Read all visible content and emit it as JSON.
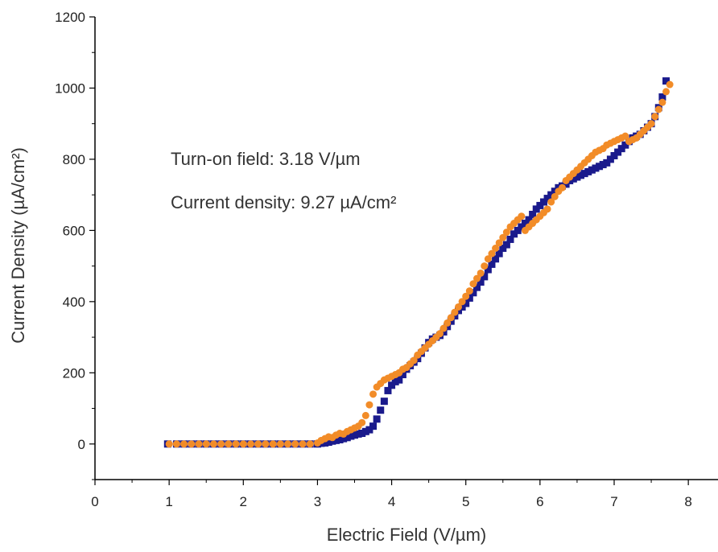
{
  "chart_data": {
    "type": "scatter",
    "xlabel": "Electric Field (V/µm)",
    "ylabel": "Current Density (µA/cm²)",
    "xlim": [
      0,
      8.4
    ],
    "ylim": [
      -100,
      1200
    ],
    "x_ticks": [
      "0",
      "1",
      "2",
      "3",
      "4",
      "5",
      "6",
      "7",
      "8"
    ],
    "y_ticks": [
      "0",
      "200",
      "400",
      "600",
      "800",
      "1000",
      "1200"
    ],
    "annotations": [
      "Turn-on field: 3.18 V/µm",
      "Current density: 9.27 µA/cm²"
    ],
    "grid": false,
    "legend": "none",
    "series": [
      {
        "marker": "square",
        "color": "#1a1a8c",
        "x": [
          0.98,
          1.1,
          1.2,
          1.3,
          1.4,
          1.5,
          1.6,
          1.7,
          1.8,
          1.9,
          2.0,
          2.1,
          2.2,
          2.3,
          2.4,
          2.5,
          2.6,
          2.7,
          2.8,
          2.9,
          3.0,
          3.05,
          3.1,
          3.15,
          3.2,
          3.25,
          3.3,
          3.35,
          3.4,
          3.45,
          3.5,
          3.55,
          3.6,
          3.65,
          3.7,
          3.75,
          3.8,
          3.85,
          3.9,
          3.95,
          4.0,
          4.05,
          4.1,
          4.15,
          4.2,
          4.25,
          4.3,
          4.35,
          4.4,
          4.45,
          4.5,
          4.55,
          4.6,
          4.65,
          4.7,
          4.75,
          4.8,
          4.85,
          4.9,
          4.95,
          5.0,
          5.05,
          5.1,
          5.15,
          5.2,
          5.25,
          5.3,
          5.35,
          5.4,
          5.45,
          5.5,
          5.55,
          5.6,
          5.65,
          5.7,
          5.75,
          5.8,
          5.85,
          5.9,
          5.95,
          6.0,
          6.05,
          6.1,
          6.15,
          6.2,
          6.25,
          6.3,
          6.35,
          6.4,
          6.45,
          6.5,
          6.55,
          6.6,
          6.65,
          6.7,
          6.75,
          6.8,
          6.85,
          6.9,
          6.95,
          7.0,
          7.05,
          7.1,
          7.15,
          7.2,
          7.25,
          7.3,
          7.35,
          7.4,
          7.45,
          7.5,
          7.55,
          7.6,
          7.65,
          7.7
        ],
        "y": [
          0,
          0,
          0,
          0,
          0,
          0,
          0,
          0,
          0,
          0,
          0,
          0,
          0,
          0,
          0,
          0,
          0,
          0,
          0,
          0,
          0,
          2,
          3,
          5,
          8,
          10,
          12,
          15,
          18,
          22,
          25,
          28,
          30,
          35,
          40,
          50,
          70,
          95,
          120,
          150,
          165,
          175,
          180,
          195,
          210,
          220,
          230,
          240,
          255,
          270,
          285,
          295,
          300,
          305,
          315,
          330,
          345,
          360,
          375,
          385,
          395,
          410,
          425,
          440,
          455,
          470,
          490,
          505,
          520,
          535,
          550,
          560,
          575,
          590,
          600,
          610,
          620,
          630,
          645,
          660,
          670,
          680,
          690,
          700,
          710,
          720,
          725,
          730,
          740,
          745,
          750,
          755,
          760,
          765,
          770,
          775,
          780,
          785,
          790,
          800,
          810,
          820,
          830,
          840,
          850,
          860,
          865,
          870,
          880,
          890,
          900,
          920,
          945,
          975,
          1020
        ]
      },
      {
        "marker": "circle",
        "color": "#f28c28",
        "x": [
          1.0,
          1.1,
          1.2,
          1.3,
          1.4,
          1.5,
          1.6,
          1.7,
          1.8,
          1.9,
          2.0,
          2.1,
          2.2,
          2.3,
          2.4,
          2.5,
          2.6,
          2.7,
          2.8,
          2.9,
          3.0,
          3.05,
          3.1,
          3.15,
          3.2,
          3.25,
          3.3,
          3.35,
          3.4,
          3.45,
          3.5,
          3.55,
          3.6,
          3.65,
          3.7,
          3.75,
          3.8,
          3.85,
          3.9,
          3.95,
          4.0,
          4.05,
          4.1,
          4.15,
          4.2,
          4.25,
          4.3,
          4.35,
          4.4,
          4.45,
          4.5,
          4.55,
          4.6,
          4.65,
          4.7,
          4.75,
          4.8,
          4.85,
          4.9,
          4.95,
          5.0,
          5.05,
          5.1,
          5.15,
          5.2,
          5.25,
          5.3,
          5.35,
          5.4,
          5.45,
          5.5,
          5.55,
          5.6,
          5.65,
          5.7,
          5.75,
          5.8,
          5.85,
          5.9,
          5.95,
          6.0,
          6.05,
          6.1,
          6.15,
          6.2,
          6.25,
          6.3,
          6.35,
          6.4,
          6.45,
          6.5,
          6.55,
          6.6,
          6.65,
          6.7,
          6.75,
          6.8,
          6.85,
          6.9,
          6.95,
          7.0,
          7.05,
          7.1,
          7.15,
          7.2,
          7.25,
          7.3,
          7.35,
          7.4,
          7.45,
          7.5,
          7.55,
          7.6,
          7.65,
          7.7,
          7.75
        ],
        "y": [
          0,
          0,
          0,
          0,
          0,
          0,
          0,
          0,
          0,
          0,
          0,
          0,
          0,
          0,
          0,
          0,
          0,
          0,
          0,
          0,
          3,
          10,
          15,
          20,
          18,
          25,
          30,
          28,
          35,
          40,
          45,
          50,
          60,
          80,
          110,
          140,
          160,
          170,
          180,
          185,
          190,
          195,
          200,
          210,
          215,
          225,
          235,
          250,
          260,
          270,
          280,
          290,
          300,
          310,
          325,
          340,
          355,
          370,
          385,
          400,
          415,
          430,
          450,
          465,
          480,
          500,
          520,
          535,
          550,
          565,
          580,
          595,
          610,
          620,
          630,
          640,
          600,
          610,
          620,
          630,
          640,
          650,
          660,
          680,
          695,
          710,
          720,
          740,
          750,
          760,
          770,
          780,
          790,
          800,
          810,
          820,
          825,
          830,
          840,
          845,
          850,
          855,
          860,
          865,
          850,
          855,
          860,
          870,
          880,
          890,
          900,
          920,
          940,
          960,
          990,
          1010
        ]
      }
    ]
  }
}
